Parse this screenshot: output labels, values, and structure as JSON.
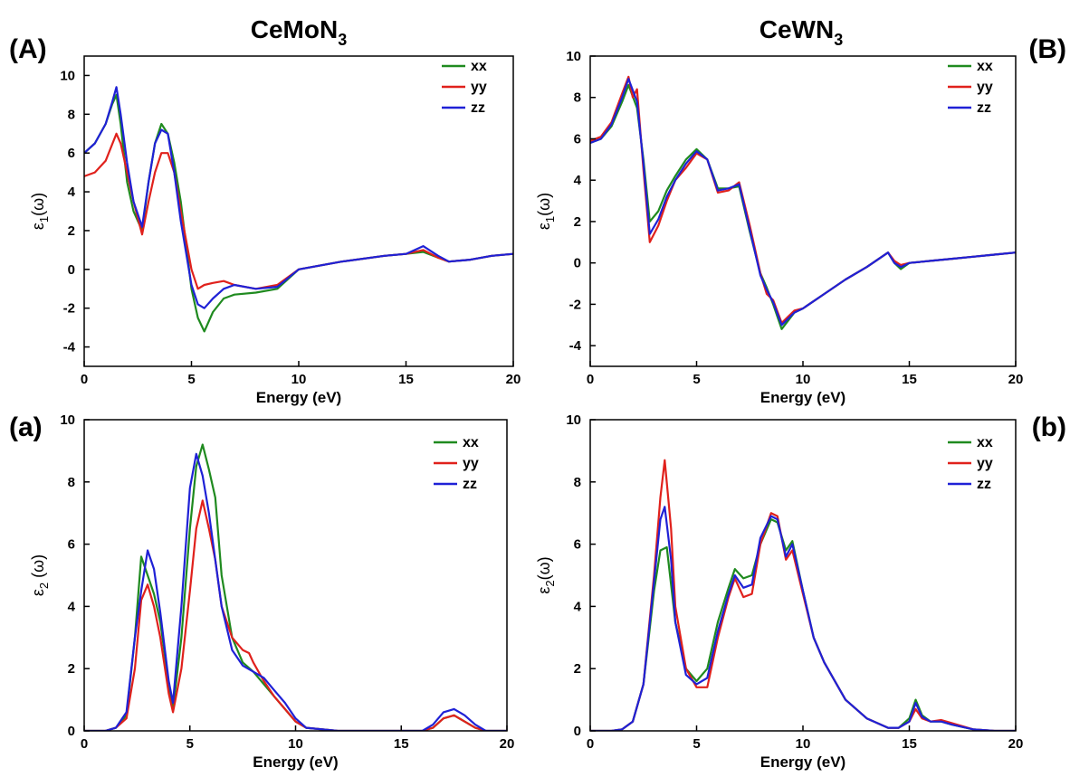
{
  "chart_data": [
    {
      "type": "line",
      "panel_label": "(A)",
      "title_main": "CeMoN",
      "title_sub": "3",
      "xlabel": "Energy (eV)",
      "ylabel_main": "ε",
      "ylabel_sub": "1",
      "ylabel_tail": "(ω)",
      "xlim": [
        0,
        20
      ],
      "ylim": [
        -5,
        11
      ],
      "xticks": [
        0,
        5,
        10,
        15,
        20
      ],
      "yticks": [
        -4,
        -2,
        0,
        2,
        4,
        6,
        8,
        10
      ],
      "legend_position": "top-right",
      "series": [
        {
          "name": "xx",
          "color": "#1f8a1f",
          "x": [
            0,
            0.5,
            1.0,
            1.3,
            1.5,
            1.7,
            2.0,
            2.3,
            2.7,
            3.0,
            3.3,
            3.6,
            3.9,
            4.2,
            4.5,
            5.0,
            5.3,
            5.6,
            6.0,
            6.5,
            7.0,
            8.0,
            9.0,
            10.0,
            12.0,
            14.0,
            15.0,
            15.8,
            16.5,
            17.0,
            18.0,
            19.0,
            20.0
          ],
          "y": [
            6.0,
            6.5,
            7.5,
            8.5,
            9.0,
            7.5,
            4.5,
            3.0,
            2.0,
            4.5,
            6.5,
            7.5,
            7.0,
            5.5,
            3.5,
            -1.0,
            -2.5,
            -3.2,
            -2.2,
            -1.5,
            -1.3,
            -1.2,
            -1.0,
            0.0,
            0.4,
            0.7,
            0.8,
            0.9,
            0.6,
            0.4,
            0.5,
            0.7,
            0.8
          ]
        },
        {
          "name": "yy",
          "color": "#e0211c",
          "x": [
            0,
            0.5,
            1.0,
            1.5,
            1.7,
            2.0,
            2.3,
            2.7,
            3.0,
            3.3,
            3.6,
            3.9,
            4.2,
            4.5,
            5.0,
            5.3,
            5.6,
            6.0,
            6.5,
            7.0,
            8.0,
            9.0,
            10.0,
            12.0,
            14.0,
            15.0,
            15.8,
            16.5,
            17.0,
            18.0,
            19.0,
            20.0
          ],
          "y": [
            4.8,
            5.0,
            5.6,
            7.0,
            6.5,
            5.0,
            3.5,
            1.8,
            3.5,
            5.0,
            6.0,
            6.0,
            5.0,
            3.0,
            0.0,
            -1.0,
            -0.8,
            -0.7,
            -0.6,
            -0.8,
            -1.0,
            -0.8,
            0.0,
            0.4,
            0.7,
            0.8,
            1.0,
            0.6,
            0.4,
            0.5,
            0.7,
            0.8
          ]
        },
        {
          "name": "zz",
          "color": "#1f21d6",
          "x": [
            0,
            0.5,
            1.0,
            1.3,
            1.5,
            1.7,
            2.0,
            2.3,
            2.7,
            3.0,
            3.3,
            3.6,
            3.9,
            4.2,
            4.5,
            5.0,
            5.3,
            5.6,
            6.0,
            6.5,
            7.0,
            8.0,
            9.0,
            10.0,
            12.0,
            14.0,
            15.0,
            15.8,
            16.5,
            17.0,
            18.0,
            19.0,
            20.0
          ],
          "y": [
            6.0,
            6.5,
            7.5,
            8.6,
            9.4,
            8.0,
            5.5,
            3.5,
            2.2,
            4.5,
            6.5,
            7.2,
            7.0,
            5.0,
            2.5,
            -0.8,
            -1.8,
            -2.0,
            -1.5,
            -1.0,
            -0.8,
            -1.0,
            -0.9,
            0.0,
            0.4,
            0.7,
            0.8,
            1.2,
            0.7,
            0.4,
            0.5,
            0.7,
            0.8
          ]
        }
      ]
    },
    {
      "type": "line",
      "panel_label": "(B)",
      "title_main": "CeWN",
      "title_sub": "3",
      "xlabel": "Energy (eV)",
      "ylabel_main": "ε",
      "ylabel_sub": "1",
      "ylabel_tail": "(ω)",
      "xlim": [
        0,
        20
      ],
      "ylim": [
        -5,
        10
      ],
      "xticks": [
        0,
        5,
        10,
        15,
        20
      ],
      "yticks": [
        -4,
        -2,
        0,
        2,
        4,
        6,
        8,
        10
      ],
      "legend_position": "top-right",
      "series": [
        {
          "name": "xx",
          "color": "#1f8a1f",
          "x": [
            0,
            0.5,
            1.0,
            1.5,
            1.8,
            2.2,
            2.5,
            2.8,
            3.2,
            3.6,
            4.0,
            4.5,
            5.0,
            5.5,
            6.0,
            6.5,
            7.0,
            7.5,
            8.0,
            8.3,
            8.6,
            9.0,
            9.3,
            9.6,
            10.0,
            11.0,
            12.0,
            13.0,
            14.0,
            14.3,
            14.6,
            15.0,
            16.0,
            17.0,
            18.0,
            19.0,
            20.0
          ],
          "y": [
            5.8,
            6.0,
            6.6,
            7.8,
            8.6,
            7.5,
            5.0,
            2.0,
            2.5,
            3.5,
            4.2,
            5.0,
            5.5,
            5.0,
            3.6,
            3.6,
            3.7,
            1.5,
            -0.5,
            -1.2,
            -2.0,
            -3.2,
            -2.8,
            -2.4,
            -2.2,
            -1.5,
            -0.8,
            -0.2,
            0.5,
            0.0,
            -0.3,
            0.0,
            0.1,
            0.2,
            0.3,
            0.4,
            0.5
          ]
        },
        {
          "name": "yy",
          "color": "#e0211c",
          "x": [
            0,
            0.5,
            1.0,
            1.5,
            1.8,
            2.0,
            2.2,
            2.5,
            2.8,
            3.2,
            3.6,
            4.0,
            4.5,
            5.0,
            5.5,
            6.0,
            6.5,
            7.0,
            7.5,
            8.0,
            8.3,
            8.6,
            9.0,
            9.3,
            9.6,
            10.0,
            11.0,
            12.0,
            13.0,
            14.0,
            14.3,
            14.6,
            15.0,
            16.0,
            17.0,
            18.0,
            19.0,
            20.0
          ],
          "y": [
            5.9,
            6.1,
            6.8,
            8.2,
            9.0,
            8.0,
            8.4,
            4.5,
            1.0,
            1.8,
            3.0,
            4.0,
            4.6,
            5.3,
            5.0,
            3.4,
            3.5,
            3.9,
            1.8,
            -0.5,
            -1.5,
            -1.8,
            -2.9,
            -2.6,
            -2.3,
            -2.2,
            -1.5,
            -0.8,
            -0.2,
            0.5,
            0.1,
            -0.1,
            0.0,
            0.1,
            0.2,
            0.3,
            0.4,
            0.5
          ]
        },
        {
          "name": "zz",
          "color": "#1f21d6",
          "x": [
            0,
            0.5,
            1.0,
            1.5,
            1.8,
            2.2,
            2.5,
            2.8,
            3.2,
            3.6,
            4.0,
            4.5,
            5.0,
            5.5,
            6.0,
            6.5,
            7.0,
            7.5,
            8.0,
            8.3,
            8.6,
            9.0,
            9.3,
            9.6,
            10.0,
            11.0,
            12.0,
            13.0,
            14.0,
            14.3,
            14.6,
            15.0,
            16.0,
            17.0,
            18.0,
            19.0,
            20.0
          ],
          "y": [
            5.8,
            6.0,
            6.7,
            8.0,
            8.9,
            7.8,
            4.8,
            1.4,
            2.1,
            3.2,
            4.0,
            4.8,
            5.4,
            5.0,
            3.5,
            3.6,
            3.8,
            1.6,
            -0.6,
            -1.3,
            -1.9,
            -3.0,
            -2.7,
            -2.4,
            -2.2,
            -1.5,
            -0.8,
            -0.2,
            0.5,
            0.0,
            -0.2,
            0.0,
            0.1,
            0.2,
            0.3,
            0.4,
            0.5
          ]
        }
      ]
    },
    {
      "type": "line",
      "panel_label": "(a)",
      "xlabel": "Energy (eV)",
      "ylabel_main": "ε",
      "ylabel_sub": "2",
      "ylabel_tail": " (ω)",
      "xlim": [
        0,
        20
      ],
      "ylim": [
        0,
        10
      ],
      "xticks": [
        0,
        5,
        10,
        15,
        20
      ],
      "yticks": [
        0,
        2,
        4,
        6,
        8,
        10
      ],
      "legend_position": "top-right",
      "series": [
        {
          "name": "xx",
          "color": "#1f8a1f",
          "x": [
            0,
            1.0,
            1.5,
            2.0,
            2.4,
            2.7,
            3.0,
            3.3,
            3.6,
            4.0,
            4.2,
            4.6,
            5.0,
            5.3,
            5.6,
            5.9,
            6.2,
            6.5,
            7.0,
            7.5,
            8.0,
            8.5,
            9.0,
            9.5,
            10.0,
            10.5,
            12.0,
            15.0,
            16.0,
            16.5,
            17.0,
            17.5,
            18.0,
            18.5,
            19.0,
            20.0
          ],
          "y": [
            0,
            0,
            0.1,
            0.5,
            3.0,
            5.6,
            5.0,
            4.4,
            3.5,
            1.5,
            0.7,
            3.0,
            6.5,
            8.5,
            9.2,
            8.4,
            7.5,
            5.0,
            3.0,
            2.2,
            1.9,
            1.5,
            1.1,
            0.7,
            0.3,
            0.1,
            0,
            0,
            0,
            0.1,
            0.4,
            0.5,
            0.3,
            0.1,
            0,
            0
          ]
        },
        {
          "name": "yy",
          "color": "#e0211c",
          "x": [
            0,
            1.0,
            1.5,
            2.0,
            2.4,
            2.7,
            3.0,
            3.3,
            3.6,
            4.0,
            4.2,
            4.6,
            5.0,
            5.3,
            5.6,
            5.9,
            6.2,
            6.5,
            7.0,
            7.5,
            7.8,
            8.0,
            8.5,
            9.0,
            9.5,
            10.0,
            10.5,
            12.0,
            15.0,
            16.0,
            16.5,
            17.0,
            17.5,
            18.0,
            18.5,
            19.0,
            20.0
          ],
          "y": [
            0,
            0,
            0.1,
            0.4,
            2.0,
            4.2,
            4.7,
            4.0,
            3.0,
            1.2,
            0.6,
            2.0,
            4.5,
            6.5,
            7.4,
            6.5,
            5.5,
            4.0,
            3.0,
            2.6,
            2.5,
            2.2,
            1.6,
            1.1,
            0.7,
            0.3,
            0.1,
            0,
            0,
            0,
            0.1,
            0.4,
            0.5,
            0.3,
            0.1,
            0,
            0
          ]
        },
        {
          "name": "zz",
          "color": "#1f21d6",
          "x": [
            0,
            1.0,
            1.5,
            2.0,
            2.4,
            2.7,
            3.0,
            3.3,
            3.6,
            4.0,
            4.2,
            4.6,
            5.0,
            5.3,
            5.6,
            5.9,
            6.2,
            6.5,
            7.0,
            7.5,
            8.0,
            8.5,
            9.0,
            9.5,
            10.0,
            10.5,
            12.0,
            15.0,
            16.0,
            16.5,
            17.0,
            17.5,
            18.0,
            18.5,
            19.0,
            20.0
          ],
          "y": [
            0,
            0,
            0.1,
            0.6,
            3.0,
            4.5,
            5.8,
            5.2,
            3.8,
            1.6,
            0.9,
            4.0,
            7.8,
            8.9,
            8.2,
            7.0,
            5.5,
            4.0,
            2.6,
            2.1,
            1.9,
            1.7,
            1.3,
            0.9,
            0.4,
            0.1,
            0,
            0,
            0,
            0.2,
            0.6,
            0.7,
            0.5,
            0.2,
            0,
            0
          ]
        }
      ]
    },
    {
      "type": "line",
      "panel_label": "(b)",
      "xlabel": "Energy (eV)",
      "ylabel_main": "ε",
      "ylabel_sub": "2",
      "ylabel_tail": "(ω)",
      "xlim": [
        0,
        20
      ],
      "ylim": [
        0,
        10
      ],
      "xticks": [
        0,
        5,
        10,
        15,
        20
      ],
      "yticks": [
        0,
        2,
        4,
        6,
        8,
        10
      ],
      "legend_position": "top-right",
      "series": [
        {
          "name": "xx",
          "color": "#1f8a1f",
          "x": [
            0,
            1.0,
            1.5,
            2.0,
            2.5,
            3.0,
            3.3,
            3.6,
            4.0,
            4.5,
            5.0,
            5.5,
            6.0,
            6.5,
            6.8,
            7.2,
            7.6,
            8.0,
            8.5,
            8.8,
            9.2,
            9.5,
            10.0,
            10.5,
            11.0,
            12.0,
            13.0,
            14.0,
            14.5,
            15.0,
            15.3,
            15.6,
            16.0,
            16.5,
            17.0,
            18.0,
            19.0,
            20.0
          ],
          "y": [
            0,
            0,
            0.05,
            0.3,
            1.5,
            4.5,
            5.8,
            5.9,
            3.5,
            2.0,
            1.6,
            2.0,
            3.5,
            4.6,
            5.2,
            4.9,
            5.0,
            6.0,
            6.8,
            6.7,
            5.8,
            6.1,
            4.5,
            3.0,
            2.2,
            1.0,
            0.4,
            0.1,
            0.1,
            0.4,
            1.0,
            0.5,
            0.3,
            0.3,
            0.2,
            0.05,
            0,
            0
          ]
        },
        {
          "name": "yy",
          "color": "#e0211c",
          "x": [
            0,
            1.0,
            1.5,
            2.0,
            2.5,
            3.0,
            3.3,
            3.5,
            3.8,
            4.0,
            4.5,
            5.0,
            5.5,
            6.0,
            6.5,
            6.8,
            7.2,
            7.6,
            8.0,
            8.5,
            8.8,
            9.2,
            9.5,
            10.0,
            10.5,
            11.0,
            12.0,
            13.0,
            14.0,
            14.5,
            15.0,
            15.3,
            15.6,
            16.0,
            16.5,
            17.0,
            18.0,
            19.0,
            20.0
          ],
          "y": [
            0,
            0,
            0.05,
            0.3,
            1.5,
            5.0,
            7.5,
            8.7,
            6.5,
            4.0,
            2.0,
            1.4,
            1.4,
            3.0,
            4.3,
            4.9,
            4.3,
            4.4,
            6.0,
            7.0,
            6.9,
            5.5,
            5.8,
            4.4,
            3.0,
            2.2,
            1.0,
            0.4,
            0.1,
            0.1,
            0.3,
            0.7,
            0.4,
            0.3,
            0.35,
            0.25,
            0.05,
            0,
            0
          ]
        },
        {
          "name": "zz",
          "color": "#1f21d6",
          "x": [
            0,
            1.0,
            1.5,
            2.0,
            2.5,
            3.0,
            3.3,
            3.5,
            3.8,
            4.0,
            4.5,
            5.0,
            5.5,
            6.0,
            6.5,
            6.8,
            7.2,
            7.6,
            8.0,
            8.5,
            8.8,
            9.2,
            9.5,
            10.0,
            10.5,
            11.0,
            12.0,
            13.0,
            14.0,
            14.5,
            15.0,
            15.3,
            15.6,
            16.0,
            16.5,
            17.0,
            18.0,
            19.0,
            20.0
          ],
          "y": [
            0,
            0,
            0.05,
            0.3,
            1.5,
            4.8,
            6.8,
            7.2,
            5.5,
            3.5,
            1.8,
            1.5,
            1.7,
            3.2,
            4.4,
            5.0,
            4.6,
            4.7,
            6.2,
            6.9,
            6.8,
            5.6,
            6.0,
            4.5,
            3.0,
            2.2,
            1.0,
            0.4,
            0.1,
            0.1,
            0.3,
            0.9,
            0.45,
            0.3,
            0.3,
            0.2,
            0.05,
            0,
            0
          ]
        }
      ]
    }
  ]
}
